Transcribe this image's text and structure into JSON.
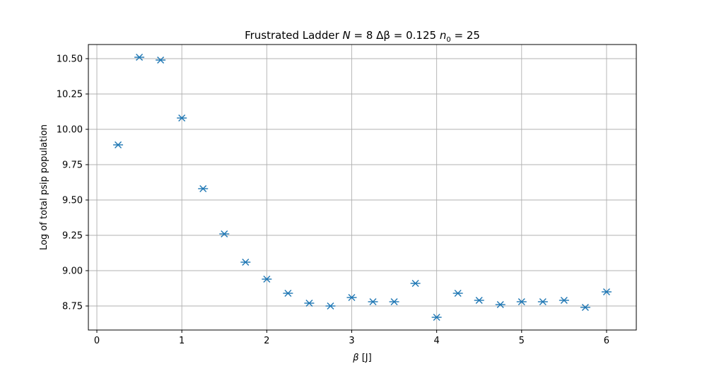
{
  "chart_data": {
    "type": "scatter",
    "title": "Frustrated Ladder N = 8 Δβ = 0.125 n₀ = 25",
    "title_parts": {
      "prefix": "Frustrated Ladder ",
      "N_symbol": "N",
      "N_value": " = 8 ",
      "dbeta_symbol": "Δβ",
      "dbeta_value": " = 0.125 ",
      "n0_symbol": "n",
      "n0_subscript": "0",
      "n0_value": " = 25"
    },
    "xlabel": "β [J]",
    "xlabel_parts": {
      "symbol": "β",
      "unit": " [J]"
    },
    "ylabel": "Log of total psip population",
    "xlim": [
      -0.1,
      6.35
    ],
    "ylim": [
      8.58,
      10.6
    ],
    "x_ticks": [
      0,
      1,
      2,
      3,
      4,
      5,
      6
    ],
    "x_tick_labels": [
      "0",
      "1",
      "2",
      "3",
      "4",
      "5",
      "6"
    ],
    "y_ticks": [
      8.75,
      9.0,
      9.25,
      9.5,
      9.75,
      10.0,
      10.25,
      10.5
    ],
    "y_tick_labels": [
      "8.75",
      "9.00",
      "9.25",
      "9.50",
      "9.75",
      "10.00",
      "10.25",
      "10.50"
    ],
    "grid": true,
    "marker": "x",
    "color": "#1f77b4",
    "x": [
      0.25,
      0.5,
      0.75,
      1.0,
      1.25,
      1.5,
      1.75,
      2.0,
      2.25,
      2.5,
      2.75,
      3.0,
      3.25,
      3.5,
      3.75,
      4.0,
      4.25,
      4.5,
      4.75,
      5.0,
      5.25,
      5.5,
      5.75,
      6.0
    ],
    "y": [
      9.89,
      10.51,
      10.49,
      10.08,
      9.58,
      9.26,
      9.06,
      8.94,
      8.84,
      8.77,
      8.75,
      8.81,
      8.78,
      8.78,
      8.91,
      8.67,
      8.84,
      8.79,
      8.76,
      8.78,
      8.78,
      8.79,
      8.74,
      8.85
    ]
  }
}
